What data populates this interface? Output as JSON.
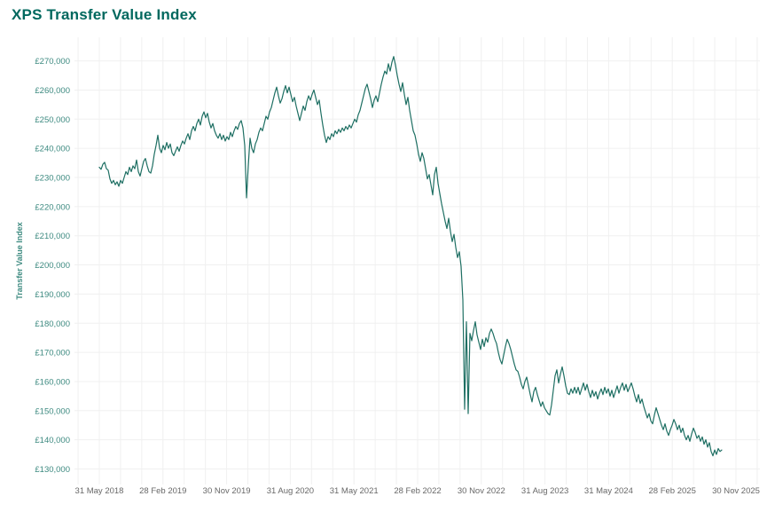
{
  "page": {
    "title": "XPS Transfer Value Index"
  },
  "colors": {
    "title": "#00685e",
    "axis_teal": "#3d8a80",
    "axis_gray": "#686868",
    "gridline": "#f0f0f0",
    "line": "#1e6f63",
    "background": "#ffffff"
  },
  "chart_data": {
    "type": "line",
    "title": "XPS Transfer Value Index",
    "ylabel": "Transfer Value Index",
    "xlabel": "",
    "currency": "GBP",
    "grid": true,
    "legend_position": "none",
    "ylim": [
      130000,
      270000
    ],
    "y_tick_step": 10000,
    "y_tick_labels": [
      "£130,000",
      "£140,000",
      "£150,000",
      "£160,000",
      "£170,000",
      "£180,000",
      "£190,000",
      "£200,000",
      "£210,000",
      "£220,000",
      "£230,000",
      "£240,000",
      "£250,000",
      "£260,000",
      "£270,000"
    ],
    "x_tick_labels": [
      "31 May 2018",
      "28 Feb 2019",
      "30 Nov 2019",
      "31 Aug 2020",
      "31 May 2021",
      "28 Feb 2022",
      "30 Nov 2022",
      "31 Aug 2023",
      "31 May 2024",
      "28 Feb 2025",
      "30 Nov 2025"
    ],
    "minor_gridlines_between_labels": 3,
    "series": [
      {
        "name": "Transfer Value Index",
        "color": "#1e6f63",
        "x_start_decimal_year": 2018.414,
        "x_step_decimal_years": 0.020897,
        "values_gbp_thousands": [
          233.5,
          232.8,
          234.5,
          235.2,
          233,
          232.5,
          229.5,
          228,
          229,
          227.5,
          228.5,
          227,
          229,
          228,
          230,
          232,
          231,
          233.5,
          232,
          234,
          233,
          236,
          232,
          230.5,
          233,
          235.5,
          236.5,
          234,
          232,
          231.5,
          234,
          238,
          241,
          244.5,
          240,
          238.5,
          241,
          239.5,
          242,
          240,
          241.5,
          238.5,
          237.5,
          239,
          240.5,
          239,
          241,
          242.5,
          241.5,
          243.5,
          245,
          243,
          246,
          247.5,
          246,
          248.5,
          250,
          248,
          251,
          252.5,
          250.5,
          252,
          249,
          247,
          248.5,
          246,
          244.5,
          243.5,
          245,
          243,
          244.5,
          242.5,
          244,
          243,
          245.5,
          244,
          246,
          247.5,
          246.5,
          248.5,
          249.5,
          247,
          241,
          223,
          234,
          243.5,
          240,
          238.5,
          241.5,
          243,
          245.5,
          247,
          246,
          248.5,
          251,
          250,
          252.5,
          254,
          256.5,
          259,
          261,
          258,
          255.5,
          257,
          259.5,
          261.5,
          259,
          261,
          258.5,
          256,
          257.5,
          254.5,
          252,
          249.5,
          252,
          254.5,
          253,
          256,
          258,
          256.5,
          258.5,
          260,
          257.5,
          255,
          256.5,
          252,
          248,
          244.5,
          242,
          244,
          243,
          245,
          244,
          246,
          245,
          246.5,
          245.5,
          247,
          246,
          247.5,
          246.5,
          248,
          247,
          248.5,
          250,
          249,
          251.5,
          253,
          255.5,
          258,
          260.5,
          262,
          259.5,
          257,
          254,
          256.5,
          258,
          256,
          259,
          262,
          264.5,
          266.5,
          265.5,
          269,
          266.5,
          269.5,
          271.5,
          268.5,
          265,
          262,
          259.5,
          262.5,
          258.5,
          255,
          257.5,
          253,
          249.5,
          246,
          244.5,
          241.5,
          238,
          235.5,
          238.5,
          236.5,
          233,
          229.5,
          231,
          227.5,
          224,
          231,
          233.5,
          228,
          224.5,
          221,
          218,
          215,
          212.5,
          216,
          211.5,
          208,
          210.5,
          206,
          202.5,
          204.5,
          199.5,
          188,
          150.5,
          180.5,
          149,
          176.5,
          174,
          177.5,
          180.5,
          176,
          173.5,
          171,
          174.5,
          172,
          175,
          173.5,
          176.5,
          178,
          176.5,
          174.5,
          173,
          170,
          167.5,
          166,
          169,
          172,
          174.5,
          173,
          171,
          168.5,
          166,
          164,
          163.5,
          161.5,
          159,
          157.5,
          160,
          161.5,
          158.5,
          155.5,
          153,
          156.5,
          158,
          155.5,
          153.5,
          151.5,
          153,
          151,
          150,
          149,
          148.5,
          152,
          157,
          162,
          164,
          159.5,
          162.5,
          165,
          162,
          158.5,
          156,
          155.5,
          157.5,
          156,
          158,
          156,
          158,
          155.5,
          157.5,
          159.5,
          157,
          159,
          156.5,
          154.5,
          157,
          155,
          156.5,
          154,
          156,
          157.5,
          155.5,
          158,
          156,
          157.5,
          155,
          157,
          154.5,
          156.5,
          158.5,
          156,
          158,
          159.5,
          157,
          159,
          156.5,
          158,
          159.5,
          157.5,
          155,
          153,
          155.5,
          152.5,
          154,
          151.5,
          149.5,
          147.5,
          149,
          146.5,
          145.5,
          148.5,
          151,
          149,
          147,
          145,
          143.5,
          145.5,
          143,
          141.5,
          143.5,
          145,
          147,
          145.5,
          143.5,
          145,
          142.5,
          144,
          141.5,
          140,
          141.5,
          139.5,
          142,
          144,
          142.5,
          140.5,
          141.5,
          139.5,
          141,
          138.5,
          140,
          137.5,
          139,
          136,
          134.5,
          136.5,
          135,
          137,
          136,
          136.5
        ]
      }
    ]
  }
}
